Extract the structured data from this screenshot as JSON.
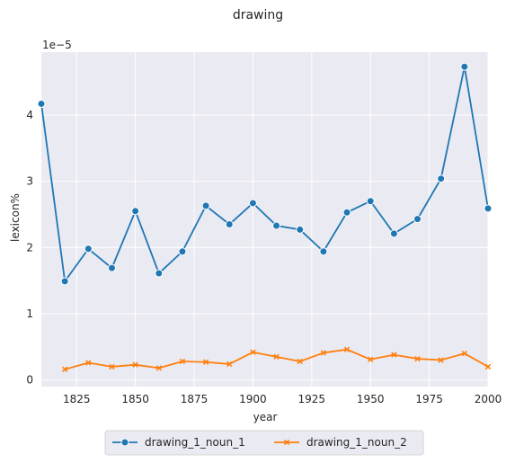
{
  "chart_data": {
    "type": "line",
    "title": "drawing",
    "xlabel": "year",
    "ylabel": "lexicon%",
    "y_scale_label": "1e−5",
    "xlim": [
      1810,
      2000
    ],
    "ylim": [
      -0.1,
      4.95
    ],
    "x_ticks": [
      1825,
      1850,
      1875,
      1900,
      1925,
      1950,
      1975,
      2000
    ],
    "x_tick_labels": [
      "1825",
      "1850",
      "1875",
      "1900",
      "1925",
      "1950",
      "1975",
      "2000"
    ],
    "y_ticks": [
      0,
      1,
      2,
      3,
      4
    ],
    "y_tick_labels": [
      "0",
      "1",
      "2",
      "3",
      "4"
    ],
    "grid": true,
    "legend_position": "bottom-center",
    "series": [
      {
        "name": "drawing_1_noun_1",
        "color": "#1f77b4",
        "marker": "circle",
        "x": [
          1810,
          1820,
          1830,
          1840,
          1850,
          1860,
          1870,
          1880,
          1890,
          1900,
          1910,
          1920,
          1930,
          1940,
          1950,
          1960,
          1970,
          1980,
          1990,
          2000
        ],
        "y": [
          4.17,
          1.49,
          1.98,
          1.69,
          2.55,
          1.61,
          1.94,
          2.63,
          2.35,
          2.67,
          2.33,
          2.27,
          1.94,
          2.53,
          2.7,
          2.21,
          2.43,
          3.04,
          4.73,
          2.59
        ]
      },
      {
        "name": "drawing_1_noun_2",
        "color": "#ff7f0e",
        "marker": "x",
        "x": [
          1820,
          1830,
          1840,
          1850,
          1860,
          1870,
          1880,
          1890,
          1900,
          1910,
          1920,
          1930,
          1940,
          1950,
          1960,
          1970,
          1980,
          1990,
          2000
        ],
        "y": [
          0.16,
          0.26,
          0.2,
          0.23,
          0.18,
          0.28,
          0.27,
          0.24,
          0.42,
          0.35,
          0.28,
          0.41,
          0.46,
          0.31,
          0.38,
          0.32,
          0.3,
          0.4,
          0.2
        ]
      }
    ]
  }
}
